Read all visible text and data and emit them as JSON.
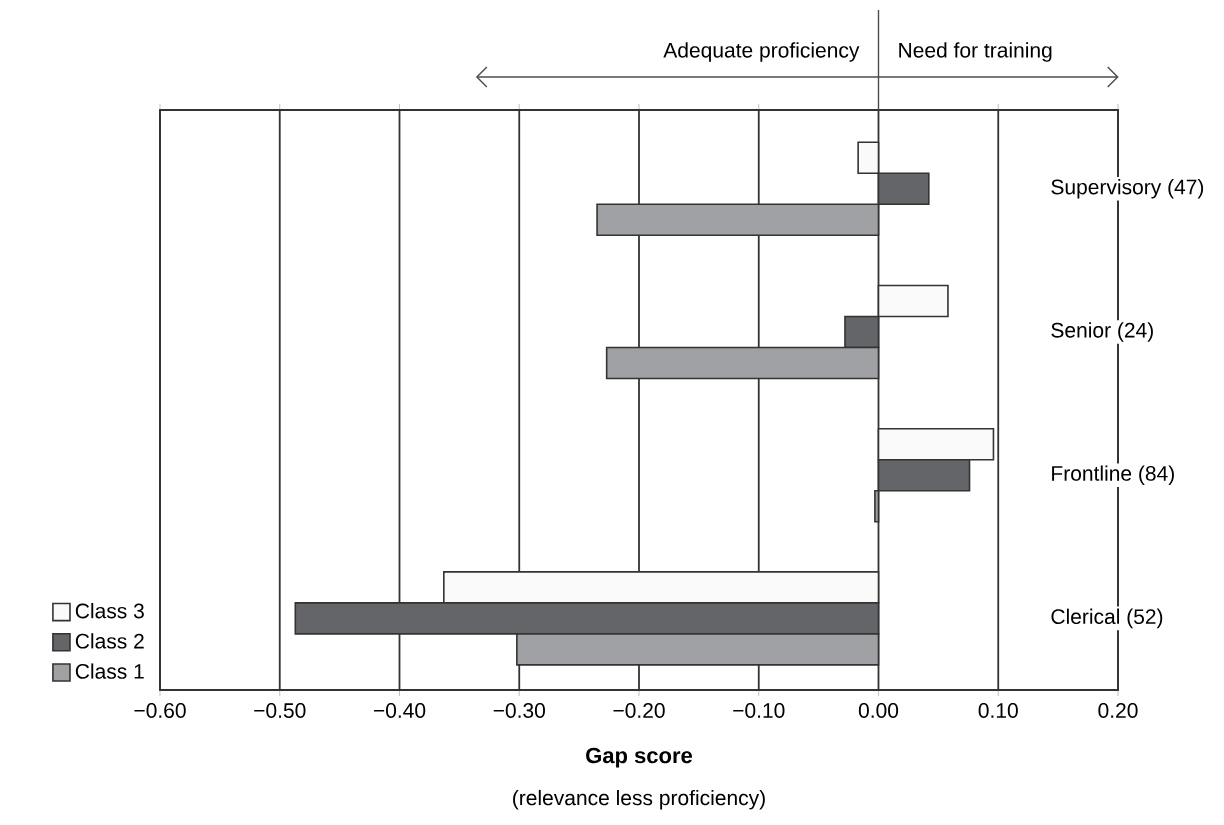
{
  "chart_data": {
    "type": "bar",
    "orientation": "horizontal",
    "xlabel": "Gap score",
    "annotations": [
      "Adequate proficiency",
      "Need for training",
      "(relevance less proficiency)"
    ],
    "categories": [
      "Supervisory (47)",
      "Senior (24)",
      "Frontline (84)",
      "Clerical (52)"
    ],
    "series": [
      {
        "name": "Class 3",
        "color": "#fafafa",
        "values": [
          -0.017,
          0.058,
          0.096,
          -0.363
        ]
      },
      {
        "name": "Class 2",
        "color": "#646569",
        "values": [
          0.042,
          -0.028,
          0.076,
          -0.487
        ]
      },
      {
        "name": "Class 1",
        "color": "#a0a1a5",
        "values": [
          -0.235,
          -0.227,
          -0.003,
          -0.302
        ]
      }
    ],
    "xlim": [
      -0.6,
      0.2
    ],
    "xticks": [
      {
        "value": -0.6,
        "label": "−0.60"
      },
      {
        "value": -0.5,
        "label": "−0.50"
      },
      {
        "value": -0.4,
        "label": "−0.40"
      },
      {
        "value": -0.3,
        "label": "−0.30"
      },
      {
        "value": -0.2,
        "label": "−0.20"
      },
      {
        "value": -0.1,
        "label": "−0.10"
      },
      {
        "value": 0.0,
        "label": "0.00"
      },
      {
        "value": 0.1,
        "label": "0.10"
      },
      {
        "value": 0.2,
        "label": "0.20"
      }
    ],
    "grid": "x",
    "legend": "bottom left"
  }
}
